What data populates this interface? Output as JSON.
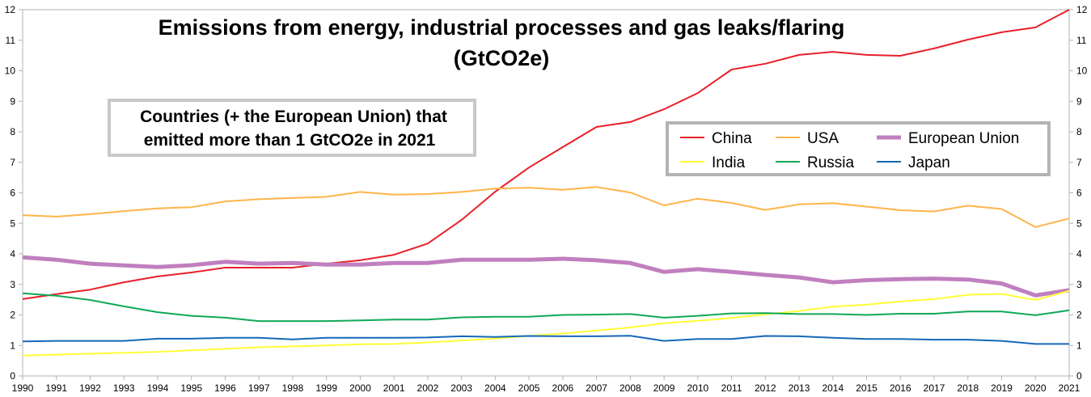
{
  "chart_data": {
    "type": "line",
    "title": "Emissions from energy, industrial processes and gas leaks/flaring",
    "title_line2": "(GtCO2e)",
    "annotation": [
      "Countries (+ the European Union) that",
      "emitted more than 1 GtCO2e in 2021"
    ],
    "xlabel": "",
    "ylabel": "",
    "x": [
      1990,
      1991,
      1992,
      1993,
      1994,
      1995,
      1996,
      1997,
      1998,
      1999,
      2000,
      2001,
      2002,
      2003,
      2004,
      2005,
      2006,
      2007,
      2008,
      2009,
      2010,
      2011,
      2012,
      2013,
      2014,
      2015,
      2016,
      2017,
      2018,
      2019,
      2020,
      2021
    ],
    "ylim": [
      0,
      12
    ],
    "yticks": [
      0,
      1,
      2,
      3,
      4,
      5,
      6,
      7,
      8,
      9,
      10,
      11,
      12
    ],
    "y_axis_sides": [
      "left",
      "right"
    ],
    "grid": false,
    "legend_placement": "top-right",
    "series": [
      {
        "name": "China",
        "color": "#e8202a",
        "width": "normal",
        "values": [
          2.52,
          2.68,
          2.83,
          3.07,
          3.26,
          3.39,
          3.55,
          3.55,
          3.55,
          3.68,
          3.79,
          3.97,
          4.34,
          5.11,
          6.04,
          6.83,
          7.5,
          8.16,
          8.32,
          8.74,
          9.27,
          10.04,
          10.23,
          10.52,
          10.62,
          10.52,
          10.49,
          10.73,
          11.02,
          11.26,
          11.42,
          12.0
        ]
      },
      {
        "name": "USA",
        "color": "#ffb44a",
        "width": "normal",
        "values": [
          5.27,
          5.22,
          5.3,
          5.4,
          5.49,
          5.53,
          5.72,
          5.79,
          5.83,
          5.87,
          6.03,
          5.94,
          5.96,
          6.03,
          6.14,
          6.17,
          6.1,
          6.19,
          6.01,
          5.59,
          5.81,
          5.67,
          5.44,
          5.62,
          5.66,
          5.55,
          5.43,
          5.39,
          5.58,
          5.47,
          4.88,
          5.16
        ]
      },
      {
        "name": "European Union",
        "color": "#c07fbf",
        "width": "thick",
        "values": [
          3.89,
          3.81,
          3.68,
          3.62,
          3.57,
          3.63,
          3.74,
          3.68,
          3.7,
          3.65,
          3.65,
          3.7,
          3.7,
          3.81,
          3.81,
          3.81,
          3.84,
          3.79,
          3.7,
          3.41,
          3.5,
          3.41,
          3.31,
          3.23,
          3.07,
          3.14,
          3.17,
          3.19,
          3.16,
          3.03,
          2.64,
          2.81
        ]
      },
      {
        "name": "India",
        "color": "#ffff38",
        "width": "normal",
        "values": [
          0.67,
          0.7,
          0.73,
          0.76,
          0.79,
          0.84,
          0.89,
          0.94,
          0.97,
          1.0,
          1.04,
          1.05,
          1.1,
          1.16,
          1.23,
          1.31,
          1.39,
          1.49,
          1.59,
          1.73,
          1.81,
          1.9,
          2.02,
          2.13,
          2.27,
          2.34,
          2.44,
          2.52,
          2.66,
          2.69,
          2.49,
          2.79
        ]
      },
      {
        "name": "Russia",
        "color": "#10a857",
        "width": "normal",
        "values": [
          2.71,
          2.63,
          2.49,
          2.28,
          2.09,
          1.97,
          1.91,
          1.8,
          1.8,
          1.8,
          1.82,
          1.85,
          1.85,
          1.92,
          1.94,
          1.94,
          2.0,
          2.01,
          2.03,
          1.91,
          1.97,
          2.05,
          2.06,
          2.03,
          2.03,
          2.0,
          2.04,
          2.04,
          2.11,
          2.11,
          1.99,
          2.15
        ]
      },
      {
        "name": "Japan",
        "color": "#1568b8",
        "width": "normal",
        "values": [
          1.13,
          1.15,
          1.15,
          1.15,
          1.22,
          1.22,
          1.25,
          1.25,
          1.2,
          1.25,
          1.25,
          1.25,
          1.26,
          1.3,
          1.28,
          1.31,
          1.3,
          1.3,
          1.32,
          1.15,
          1.21,
          1.21,
          1.31,
          1.3,
          1.25,
          1.21,
          1.21,
          1.19,
          1.19,
          1.15,
          1.05,
          1.05
        ]
      }
    ]
  }
}
